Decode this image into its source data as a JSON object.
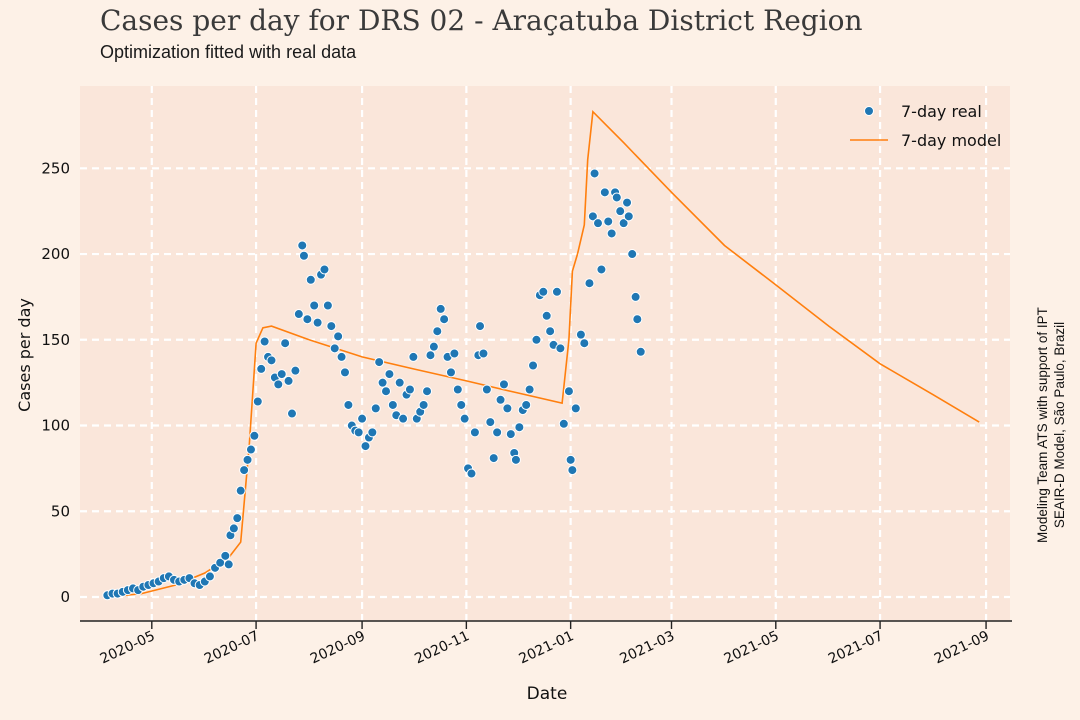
{
  "header": {
    "title": "Cases per day for DRS 02 - Araçatuba District Region",
    "subtitle": "Optimization fitted with real data"
  },
  "credit": {
    "line1": "Modeling Team ATS with support of IPT",
    "line2": "SEAIR-D Model, São Paulo, Brazil"
  },
  "colors": {
    "background": "#fdf1e7",
    "plot_background": "#fae6da",
    "grid": "#ffffff",
    "real": "#1f77b4",
    "model": "#ff7f0e"
  },
  "chart_data": {
    "type": "scatter",
    "xlabel": "Date",
    "ylabel": "Cases per day",
    "grid": true,
    "legend_position": "top-right",
    "xlim": [
      "2020-03-20",
      "2021-09-15"
    ],
    "ylim": [
      -14,
      298
    ],
    "x_ticks": [
      "2020-05",
      "2020-07",
      "2020-09",
      "2020-11",
      "2021-01",
      "2021-03",
      "2021-05",
      "2021-07",
      "2021-09"
    ],
    "y_ticks": [
      0,
      50,
      100,
      150,
      200,
      250
    ],
    "series": [
      {
        "name": "7-day real",
        "kind": "scatter",
        "points": [
          [
            "2020-04-05",
            1
          ],
          [
            "2020-04-08",
            2
          ],
          [
            "2020-04-11",
            2
          ],
          [
            "2020-04-14",
            3
          ],
          [
            "2020-04-17",
            4
          ],
          [
            "2020-04-20",
            5
          ],
          [
            "2020-04-23",
            4
          ],
          [
            "2020-04-26",
            6
          ],
          [
            "2020-04-29",
            7
          ],
          [
            "2020-05-02",
            8
          ],
          [
            "2020-05-05",
            9
          ],
          [
            "2020-05-08",
            11
          ],
          [
            "2020-05-11",
            12
          ],
          [
            "2020-05-14",
            10
          ],
          [
            "2020-05-17",
            9
          ],
          [
            "2020-05-20",
            10
          ],
          [
            "2020-05-23",
            11
          ],
          [
            "2020-05-26",
            8
          ],
          [
            "2020-05-29",
            7
          ],
          [
            "2020-06-01",
            9
          ],
          [
            "2020-06-04",
            12
          ],
          [
            "2020-06-07",
            17
          ],
          [
            "2020-06-10",
            20
          ],
          [
            "2020-06-13",
            24
          ],
          [
            "2020-06-15",
            19
          ],
          [
            "2020-06-16",
            36
          ],
          [
            "2020-06-18",
            40
          ],
          [
            "2020-06-20",
            46
          ],
          [
            "2020-06-22",
            62
          ],
          [
            "2020-06-24",
            74
          ],
          [
            "2020-06-26",
            80
          ],
          [
            "2020-06-28",
            86
          ],
          [
            "2020-06-30",
            94
          ],
          [
            "2020-07-02",
            114
          ],
          [
            "2020-07-04",
            133
          ],
          [
            "2020-07-06",
            149
          ],
          [
            "2020-07-08",
            140
          ],
          [
            "2020-07-10",
            138
          ],
          [
            "2020-07-12",
            128
          ],
          [
            "2020-07-14",
            124
          ],
          [
            "2020-07-16",
            130
          ],
          [
            "2020-07-18",
            148
          ],
          [
            "2020-07-20",
            126
          ],
          [
            "2020-07-22",
            107
          ],
          [
            "2020-07-24",
            132
          ],
          [
            "2020-07-26",
            165
          ],
          [
            "2020-07-28",
            205
          ],
          [
            "2020-07-29",
            199
          ],
          [
            "2020-07-31",
            162
          ],
          [
            "2020-08-02",
            185
          ],
          [
            "2020-08-04",
            170
          ],
          [
            "2020-08-06",
            160
          ],
          [
            "2020-08-08",
            188
          ],
          [
            "2020-08-10",
            191
          ],
          [
            "2020-08-12",
            170
          ],
          [
            "2020-08-14",
            158
          ],
          [
            "2020-08-16",
            145
          ],
          [
            "2020-08-18",
            152
          ],
          [
            "2020-08-20",
            140
          ],
          [
            "2020-08-22",
            131
          ],
          [
            "2020-08-24",
            112
          ],
          [
            "2020-08-26",
            100
          ],
          [
            "2020-08-28",
            97
          ],
          [
            "2020-08-30",
            96
          ],
          [
            "2020-09-01",
            104
          ],
          [
            "2020-09-03",
            88
          ],
          [
            "2020-09-05",
            93
          ],
          [
            "2020-09-07",
            96
          ],
          [
            "2020-09-09",
            110
          ],
          [
            "2020-09-11",
            137
          ],
          [
            "2020-09-13",
            125
          ],
          [
            "2020-09-15",
            120
          ],
          [
            "2020-09-17",
            130
          ],
          [
            "2020-09-19",
            112
          ],
          [
            "2020-09-21",
            106
          ],
          [
            "2020-09-23",
            125
          ],
          [
            "2020-09-25",
            104
          ],
          [
            "2020-09-27",
            118
          ],
          [
            "2020-09-29",
            121
          ],
          [
            "2020-10-01",
            140
          ],
          [
            "2020-10-03",
            104
          ],
          [
            "2020-10-05",
            108
          ],
          [
            "2020-10-07",
            112
          ],
          [
            "2020-10-09",
            120
          ],
          [
            "2020-10-11",
            141
          ],
          [
            "2020-10-13",
            146
          ],
          [
            "2020-10-15",
            155
          ],
          [
            "2020-10-17",
            168
          ],
          [
            "2020-10-19",
            162
          ],
          [
            "2020-10-21",
            140
          ],
          [
            "2020-10-23",
            131
          ],
          [
            "2020-10-25",
            142
          ],
          [
            "2020-10-27",
            121
          ],
          [
            "2020-10-29",
            112
          ],
          [
            "2020-10-31",
            104
          ],
          [
            "2020-11-02",
            75
          ],
          [
            "2020-11-04",
            72
          ],
          [
            "2020-11-06",
            96
          ],
          [
            "2020-11-08",
            141
          ],
          [
            "2020-11-09",
            158
          ],
          [
            "2020-11-11",
            142
          ],
          [
            "2020-11-13",
            121
          ],
          [
            "2020-11-15",
            102
          ],
          [
            "2020-11-17",
            81
          ],
          [
            "2020-11-19",
            96
          ],
          [
            "2020-11-21",
            115
          ],
          [
            "2020-11-23",
            124
          ],
          [
            "2020-11-25",
            110
          ],
          [
            "2020-11-27",
            95
          ],
          [
            "2020-11-29",
            84
          ],
          [
            "2020-11-30",
            80
          ],
          [
            "2020-12-02",
            99
          ],
          [
            "2020-12-04",
            109
          ],
          [
            "2020-12-06",
            112
          ],
          [
            "2020-12-08",
            121
          ],
          [
            "2020-12-10",
            135
          ],
          [
            "2020-12-12",
            150
          ],
          [
            "2020-12-14",
            176
          ],
          [
            "2020-12-16",
            178
          ],
          [
            "2020-12-18",
            164
          ],
          [
            "2020-12-20",
            155
          ],
          [
            "2020-12-22",
            147
          ],
          [
            "2020-12-24",
            178
          ],
          [
            "2020-12-26",
            145
          ],
          [
            "2020-12-28",
            101
          ],
          [
            "2020-12-31",
            120
          ],
          [
            "2021-01-01",
            80
          ],
          [
            "2021-01-02",
            74
          ],
          [
            "2021-01-04",
            110
          ],
          [
            "2021-01-07",
            153
          ],
          [
            "2021-01-09",
            148
          ],
          [
            "2021-01-12",
            183
          ],
          [
            "2021-01-14",
            222
          ],
          [
            "2021-01-15",
            247
          ],
          [
            "2021-01-17",
            218
          ],
          [
            "2021-01-19",
            191
          ],
          [
            "2021-01-21",
            236
          ],
          [
            "2021-01-23",
            219
          ],
          [
            "2021-01-25",
            212
          ],
          [
            "2021-01-27",
            236
          ],
          [
            "2021-01-28",
            233
          ],
          [
            "2021-01-30",
            225
          ],
          [
            "2021-02-01",
            218
          ],
          [
            "2021-02-03",
            230
          ],
          [
            "2021-02-04",
            222
          ],
          [
            "2021-02-06",
            200
          ],
          [
            "2021-02-08",
            175
          ],
          [
            "2021-02-09",
            162
          ],
          [
            "2021-02-11",
            143
          ]
        ]
      },
      {
        "name": "7-day model",
        "kind": "line",
        "points": [
          [
            "2020-04-06",
            0
          ],
          [
            "2020-04-25",
            2
          ],
          [
            "2020-05-15",
            7
          ],
          [
            "2020-06-01",
            14
          ],
          [
            "2020-06-15",
            23
          ],
          [
            "2020-06-22",
            32
          ],
          [
            "2020-06-27",
            88
          ],
          [
            "2020-07-01",
            148
          ],
          [
            "2020-07-05",
            157
          ],
          [
            "2020-07-10",
            158
          ],
          [
            "2020-08-01",
            150
          ],
          [
            "2020-09-01",
            140
          ],
          [
            "2020-10-01",
            133
          ],
          [
            "2020-11-01",
            126
          ],
          [
            "2020-12-01",
            119
          ],
          [
            "2020-12-27",
            113
          ],
          [
            "2020-12-31",
            150
          ],
          [
            "2021-01-02",
            190
          ],
          [
            "2021-01-05",
            200
          ],
          [
            "2021-01-09",
            217
          ],
          [
            "2021-01-11",
            255
          ],
          [
            "2021-01-14",
            283
          ],
          [
            "2021-02-01",
            265
          ],
          [
            "2021-03-01",
            236
          ],
          [
            "2021-04-01",
            205
          ],
          [
            "2021-05-01",
            182
          ],
          [
            "2021-06-01",
            158
          ],
          [
            "2021-07-01",
            136
          ],
          [
            "2021-08-01",
            118
          ],
          [
            "2021-08-28",
            102
          ]
        ]
      }
    ]
  }
}
